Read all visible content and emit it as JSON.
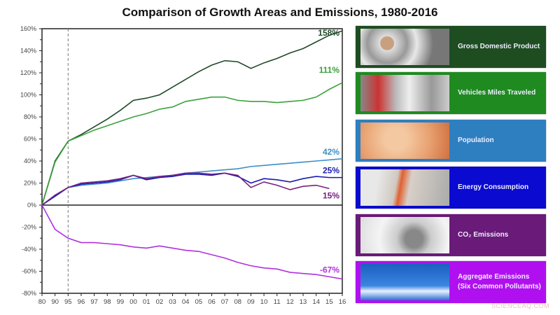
{
  "chart_data": {
    "type": "line",
    "title": "Comparison of Growth Areas and Emissions, 1980-2016",
    "categories": [
      "80",
      "90",
      "95",
      "96",
      "97",
      "98",
      "99",
      "00",
      "01",
      "02",
      "03",
      "04",
      "05",
      "06",
      "07",
      "08",
      "09",
      "10",
      "11",
      "12",
      "13",
      "14",
      "15",
      "16"
    ],
    "ylim": [
      -80,
      160
    ],
    "yticks": [
      "160%",
      "140%",
      "120%",
      "100%",
      "80%",
      "60%",
      "40%",
      "20%",
      "0%",
      "-20%",
      "-40%",
      "-60%",
      "-80%"
    ],
    "ytick_values": [
      160,
      140,
      120,
      100,
      80,
      60,
      40,
      20,
      0,
      -20,
      -40,
      -60,
      -80
    ],
    "reference_line": "95",
    "grid": false,
    "legend_placement": "right",
    "series": [
      {
        "name": "Gross Domestic Product",
        "color": "#1f4a2a",
        "panel_color": "#1e4d22",
        "end_label": "158%",
        "values": [
          0,
          40,
          58,
          64,
          71,
          78,
          86,
          95,
          97,
          100,
          107,
          114,
          121,
          127,
          131,
          130,
          124,
          129,
          133,
          138,
          142,
          148,
          154,
          158
        ]
      },
      {
        "name": "Vehicles Miles Traveled",
        "color": "#3aa13a",
        "panel_color": "#1f8a20",
        "end_label": "111%",
        "values": [
          0,
          39,
          58,
          63,
          68,
          72,
          76,
          80,
          83,
          87,
          89,
          94,
          96,
          98,
          98,
          95,
          94,
          94,
          93,
          94,
          95,
          98,
          105,
          111
        ]
      },
      {
        "name": "Population",
        "color": "#3a8fc8",
        "panel_color": "#2e7fbf",
        "end_label": "42%",
        "values": [
          0,
          9,
          16,
          18,
          19,
          20,
          22,
          24,
          25,
          26,
          27,
          29,
          30,
          31,
          32,
          33,
          35,
          36,
          37,
          38,
          39,
          40,
          41,
          42
        ]
      },
      {
        "name": "Energy Consumption",
        "color": "#1a1ab0",
        "panel_color": "#0a0ad0",
        "end_label": "25%",
        "values": [
          0,
          8,
          16,
          19,
          20,
          21,
          23,
          27,
          23,
          25,
          26,
          28,
          28,
          27,
          29,
          26,
          20,
          24,
          23,
          21,
          24,
          26,
          25,
          25
        ]
      },
      {
        "name": "CO₂ Emissions",
        "color": "#7a2080",
        "panel_color": "#6a1a78",
        "end_label": "15%",
        "values": [
          0,
          9,
          16,
          20,
          21,
          22,
          24,
          27,
          24,
          26,
          27,
          29,
          29,
          28,
          29,
          27,
          16,
          21,
          18,
          14,
          17,
          18,
          15,
          null
        ]
      },
      {
        "name": "Aggregate Emissions\n(Six Common Pollutants)",
        "color": "#b030e0",
        "panel_color": "#b010f0",
        "end_label": "-67%",
        "values": [
          0,
          -22,
          -30,
          -34,
          -34,
          -35,
          -36,
          -38,
          -39,
          -37,
          -39,
          -41,
          -42,
          -45,
          -48,
          -52,
          -55,
          -57,
          -58,
          -61,
          -62,
          -63,
          -65,
          -67
        ]
      }
    ]
  },
  "legend_images": [
    "coins-image",
    "traffic-image",
    "baby-image",
    "plug-image",
    "exhaust-image",
    "smokestacks-image"
  ],
  "watermark": "SCIENCEAQ.COM"
}
